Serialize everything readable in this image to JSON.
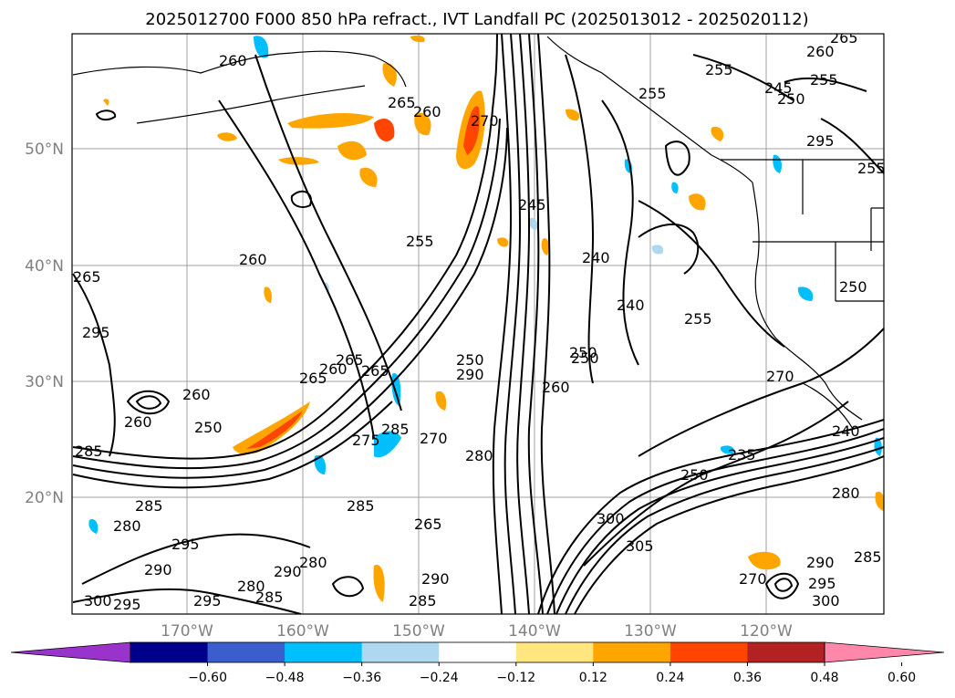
{
  "title": "2025012700 F000 850 hPa refract., IVT Landfall PC (2025013012 - 2025020112)",
  "map": {
    "lon_ticks": [
      "170°W",
      "160°W",
      "150°W",
      "140°W",
      "130°W",
      "120°W"
    ],
    "lat_ticks": [
      "50°N",
      "40°N",
      "30°N",
      "20°N"
    ],
    "contour_labels": [
      "265",
      "265",
      "255",
      "260",
      "265",
      "260",
      "255",
      "255",
      "250",
      "260",
      "265",
      "270",
      "245",
      "240",
      "240",
      "255",
      "250",
      "260",
      "270",
      "285",
      "275",
      "260",
      "295",
      "250",
      "285",
      "270",
      "280",
      "265",
      "235",
      "250",
      "280",
      "240",
      "280",
      "285",
      "280",
      "300",
      "305",
      "285",
      "290",
      "295",
      "300",
      "290",
      "295",
      "280",
      "290",
      "300",
      "285",
      "295",
      "250",
      "285",
      "265",
      "245",
      "260",
      "250",
      "255",
      "260",
      "255",
      "250",
      "290",
      "265",
      "285",
      "260",
      "270",
      "295",
      "290",
      "295"
    ]
  },
  "colorbar": {
    "tick_labels": [
      "−0.60",
      "−0.48",
      "−0.36",
      "−0.24",
      "−0.12",
      "0.12",
      "0.24",
      "0.36",
      "0.48",
      "0.60"
    ],
    "colors": [
      "#9933cc",
      "#00008b",
      "#3a5fcd",
      "#00bfff",
      "#add8f0",
      "#ffffff",
      "#ffe680",
      "#ffa500",
      "#ff4500",
      "#b22222",
      "#ff88aa"
    ]
  }
}
